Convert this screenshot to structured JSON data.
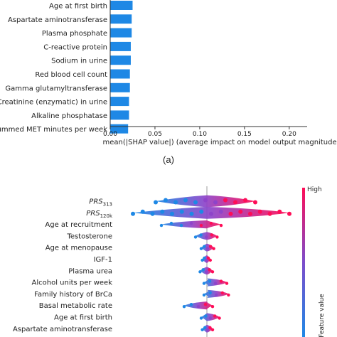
{
  "caption_a": "(a)",
  "colors": {
    "bar": "#1e88e5",
    "low": "#1e88e5",
    "high": "#ff0d57"
  },
  "chart_data": [
    {
      "type": "bar",
      "orientation": "horizontal",
      "categories": [
        "Age at first birth",
        "Aspartate aminotransferase",
        "Plasma phosphate",
        "C-reactive protein",
        "Sodium in urine",
        "Red blood cell count",
        "Gamma glutamyltransferase",
        "Creatinine (enzymatic) in urine",
        "Alkaline phosphatase",
        "Summed MET minutes per week"
      ],
      "values": [
        0.025,
        0.024,
        0.024,
        0.023,
        0.023,
        0.022,
        0.022,
        0.021,
        0.021,
        0.02
      ],
      "xlabel": "mean(|SHAP value|) (average impact on model output magnitude)",
      "xticks": [
        "0.00",
        "0.05",
        "0.10",
        "0.15",
        "0.20"
      ],
      "xlim": [
        0,
        0.22
      ],
      "grid": false
    },
    {
      "type": "scatter",
      "subtype": "beeswarm",
      "categories": [
        "PRS",
        "PRS",
        "Age at recruitment",
        "Testosterone",
        "Age at menopause",
        "IGF-1",
        "Plasma urea",
        "Alcohol units per week",
        "Family history of BrCa",
        "Basal metabolic rate",
        "Age at first birth",
        "Aspartate aminotransferase"
      ],
      "subscripts": [
        "313",
        "120k",
        "",
        "",
        "",
        "",
        "",
        "",
        "",
        "",
        "",
        ""
      ],
      "spread": [
        [
          -0.9,
          0.85
        ],
        [
          -1.3,
          1.45
        ],
        [
          -0.8,
          0.25
        ],
        [
          -0.2,
          0.18
        ],
        [
          -0.1,
          0.12
        ],
        [
          -0.08,
          0.06
        ],
        [
          -0.12,
          0.1
        ],
        [
          -0.05,
          0.35
        ],
        [
          -0.05,
          0.38
        ],
        [
          -0.4,
          0.1
        ],
        [
          -0.1,
          0.22
        ],
        [
          -0.08,
          0.1
        ]
      ],
      "colorbar_label": "Feature value",
      "colorbar_high": "High"
    }
  ]
}
